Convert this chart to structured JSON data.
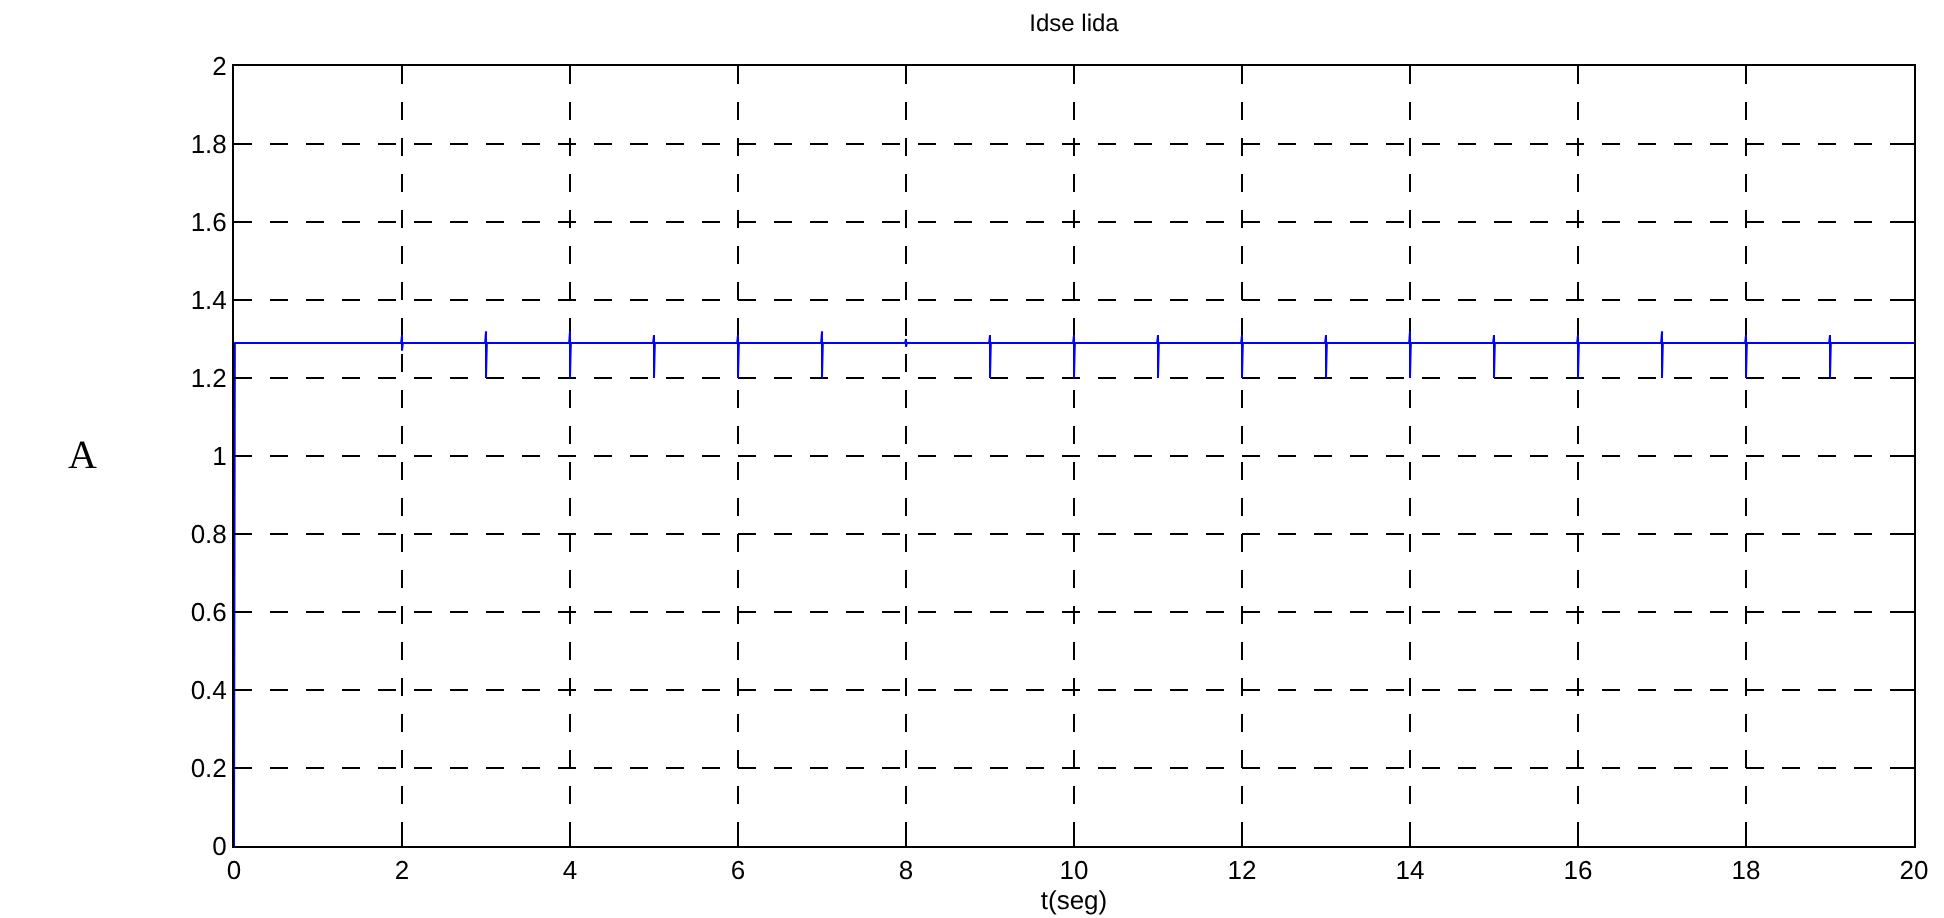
{
  "chart_data": {
    "type": "line",
    "title": "Idse lida",
    "xlabel": "t(seg)",
    "ylabel": "A",
    "x": [
      0,
      0.01,
      1.99,
      2,
      2,
      2.01,
      2.99,
      3,
      3,
      3.01,
      3.99,
      4,
      4,
      4.01,
      4.99,
      5,
      5,
      5.01,
      5.99,
      6,
      6,
      6.01,
      6.99,
      7,
      7,
      7.01,
      7.99,
      8,
      8,
      8.01,
      8.99,
      9,
      9,
      9.01,
      9.99,
      10,
      10,
      10.01,
      10.99,
      11,
      11,
      11.01,
      11.99,
      12,
      12,
      12.01,
      12.99,
      13,
      13,
      13.01,
      13.99,
      14,
      14,
      14.01,
      14.99,
      15,
      15,
      15.01,
      15.99,
      16,
      16,
      16.01,
      16.99,
      17,
      17,
      17.01,
      17.99,
      18,
      18,
      18.01,
      18.99,
      19,
      19,
      19.01,
      20
    ],
    "series": [
      {
        "color": "#0000ff",
        "values": [
          0,
          1.29,
          1.29,
          1.31,
          1.27,
          1.29,
          1.29,
          1.32,
          1.2,
          1.29,
          1.29,
          1.32,
          1.2,
          1.29,
          1.29,
          1.31,
          1.2,
          1.29,
          1.29,
          1.31,
          1.2,
          1.29,
          1.29,
          1.32,
          1.2,
          1.29,
          1.29,
          1.3,
          1.28,
          1.29,
          1.29,
          1.31,
          1.2,
          1.29,
          1.29,
          1.31,
          1.2,
          1.29,
          1.29,
          1.31,
          1.2,
          1.29,
          1.29,
          1.31,
          1.2,
          1.29,
          1.29,
          1.31,
          1.2,
          1.29,
          1.29,
          1.32,
          1.2,
          1.29,
          1.29,
          1.31,
          1.2,
          1.29,
          1.29,
          1.31,
          1.2,
          1.29,
          1.29,
          1.32,
          1.2,
          1.29,
          1.29,
          1.31,
          1.2,
          1.29,
          1.29,
          1.31,
          1.2,
          1.29,
          1.29
        ]
      }
    ],
    "xlim": [
      0,
      20
    ],
    "xticks": [
      0,
      2,
      4,
      6,
      8,
      10,
      12,
      14,
      16,
      18,
      20
    ],
    "ylim": [
      0,
      2
    ],
    "yticks": [
      0,
      0.2,
      0.4,
      0.6,
      0.8,
      1,
      1.2,
      1.4,
      1.6,
      1.8,
      2
    ],
    "grid": true,
    "marker": "none",
    "line_style": "solid"
  }
}
